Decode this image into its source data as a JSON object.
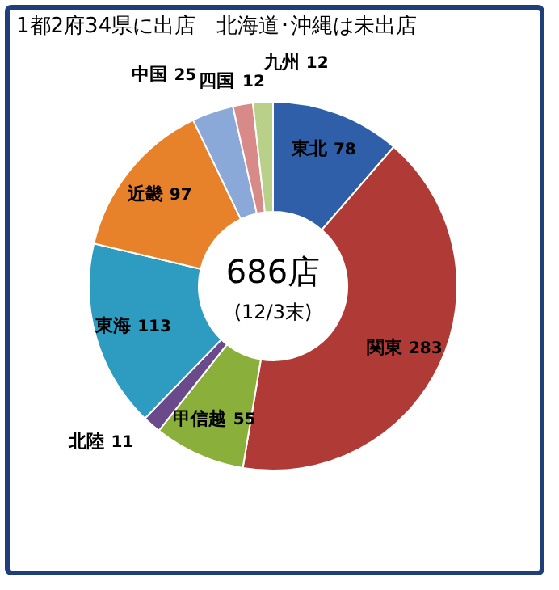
{
  "chart_data": {
    "type": "donut",
    "title": "1都2府34県に出店　北海道･沖縄は未出店",
    "categories": [
      "東北",
      "関東",
      "甲信越",
      "北陸",
      "東海",
      "近畿",
      "中国",
      "四国",
      "九州"
    ],
    "values": [
      78,
      283,
      55,
      11,
      113,
      97,
      25,
      12,
      12
    ],
    "colors": [
      "#2f5fa8",
      "#b03a36",
      "#8aaf3a",
      "#6a4a8a",
      "#2e9cc0",
      "#e8822a",
      "#8aa8d8",
      "#d88a88",
      "#b8d088"
    ],
    "data_labels": true,
    "annotations": [
      "686店",
      "(12/3末)"
    ]
  }
}
